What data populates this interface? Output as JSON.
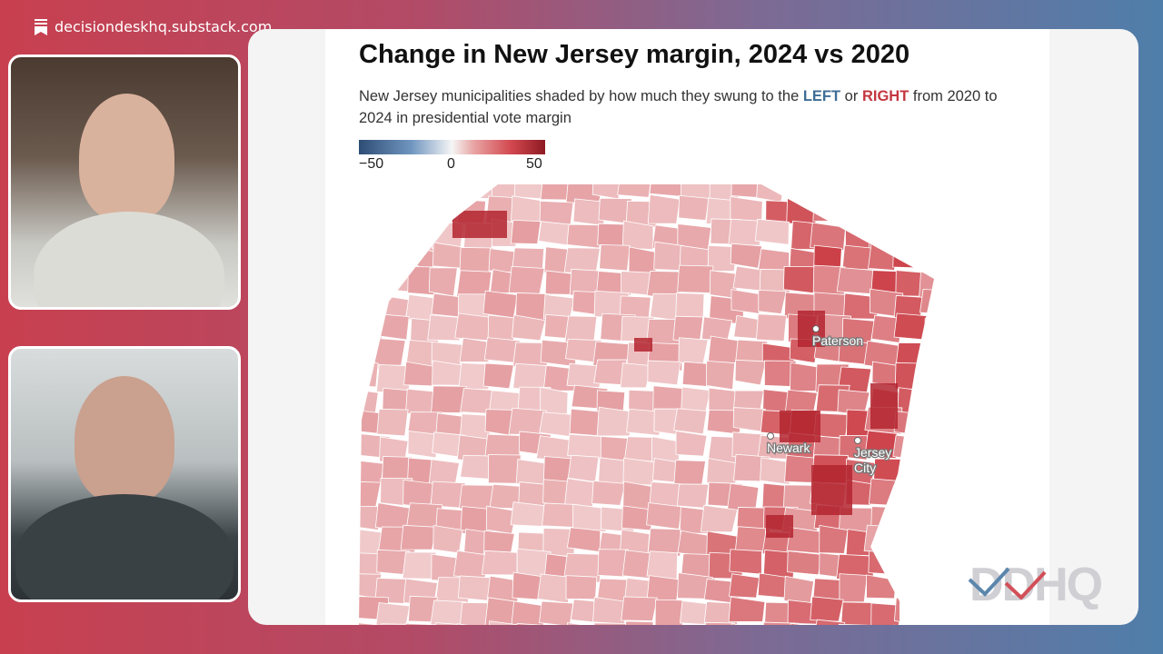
{
  "brand": {
    "site": "decisiondeskhq.substack.com",
    "icon": "bookmark-icon"
  },
  "chart": {
    "title": "Change in New Jersey margin, 2024 vs 2020",
    "subtitle_pre": "New Jersey municipalities shaded by how much they swung to the ",
    "subtitle_left": "LEFT",
    "subtitle_mid": " or ",
    "subtitle_right": "RIGHT",
    "subtitle_post": " from 2020 to 2024 in presidential vote margin",
    "legend": {
      "min": "−50",
      "mid": "0",
      "max": "50",
      "colors": [
        "#2e4d75",
        "#f5f5f5",
        "#8e1a22"
      ]
    },
    "cities": [
      {
        "name": "Paterson"
      },
      {
        "name": "Newark"
      },
      {
        "name": "Jersey City"
      }
    ]
  },
  "colors": {
    "left": "#3f6d96",
    "right": "#c4363f"
  },
  "logo": {
    "text": "DDHQ"
  }
}
